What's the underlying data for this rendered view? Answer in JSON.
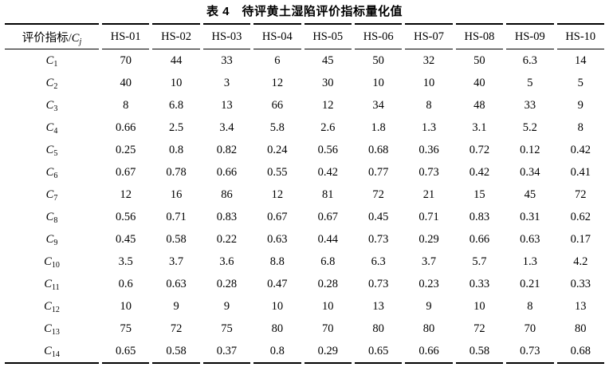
{
  "page": {
    "title": "表 4　待评黄土湿陷评价指标量化值"
  },
  "table": {
    "header": {
      "indicator_prefix": "评价指标/",
      "indicator_symbol": "C",
      "indicator_subscript": "j",
      "columns": [
        "HS-01",
        "HS-02",
        "HS-03",
        "HS-04",
        "HS-05",
        "HS-06",
        "HS-07",
        "HS-08",
        "HS-09",
        "HS-10"
      ]
    },
    "rows": [
      {
        "symbol": "C",
        "sub": "1",
        "values": [
          "70",
          "44",
          "33",
          "6",
          "45",
          "50",
          "32",
          "50",
          "6.3",
          "14"
        ]
      },
      {
        "symbol": "C",
        "sub": "2",
        "values": [
          "40",
          "10",
          "3",
          "12",
          "30",
          "10",
          "10",
          "40",
          "5",
          "5"
        ]
      },
      {
        "symbol": "C",
        "sub": "3",
        "values": [
          "8",
          "6.8",
          "13",
          "66",
          "12",
          "34",
          "8",
          "48",
          "33",
          "9"
        ]
      },
      {
        "symbol": "C",
        "sub": "4",
        "values": [
          "0.66",
          "2.5",
          "3.4",
          "5.8",
          "2.6",
          "1.8",
          "1.3",
          "3.1",
          "5.2",
          "8"
        ]
      },
      {
        "symbol": "C",
        "sub": "5",
        "values": [
          "0.25",
          "0.8",
          "0.82",
          "0.24",
          "0.56",
          "0.68",
          "0.36",
          "0.72",
          "0.12",
          "0.42"
        ]
      },
      {
        "symbol": "C",
        "sub": "6",
        "values": [
          "0.67",
          "0.78",
          "0.66",
          "0.55",
          "0.42",
          "0.77",
          "0.73",
          "0.42",
          "0.34",
          "0.41"
        ]
      },
      {
        "symbol": "C",
        "sub": "7",
        "values": [
          "12",
          "16",
          "86",
          "12",
          "81",
          "72",
          "21",
          "15",
          "45",
          "72"
        ]
      },
      {
        "symbol": "C",
        "sub": "8",
        "values": [
          "0.56",
          "0.71",
          "0.83",
          "0.67",
          "0.67",
          "0.45",
          "0.71",
          "0.83",
          "0.31",
          "0.62"
        ]
      },
      {
        "symbol": "C",
        "sub": "9",
        "values": [
          "0.45",
          "0.58",
          "0.22",
          "0.63",
          "0.44",
          "0.73",
          "0.29",
          "0.66",
          "0.63",
          "0.17"
        ]
      },
      {
        "symbol": "C",
        "sub": "10",
        "values": [
          "3.5",
          "3.7",
          "3.6",
          "8.8",
          "6.8",
          "6.3",
          "3.7",
          "5.7",
          "1.3",
          "4.2"
        ]
      },
      {
        "symbol": "C",
        "sub": "11",
        "values": [
          "0.6",
          "0.63",
          "0.28",
          "0.47",
          "0.28",
          "0.73",
          "0.23",
          "0.33",
          "0.21",
          "0.33"
        ]
      },
      {
        "symbol": "C",
        "sub": "12",
        "values": [
          "10",
          "9",
          "9",
          "10",
          "10",
          "13",
          "9",
          "10",
          "8",
          "13"
        ]
      },
      {
        "symbol": "C",
        "sub": "13",
        "values": [
          "75",
          "72",
          "75",
          "80",
          "70",
          "80",
          "80",
          "72",
          "70",
          "80"
        ]
      },
      {
        "symbol": "C",
        "sub": "14",
        "values": [
          "0.65",
          "0.58",
          "0.37",
          "0.8",
          "0.29",
          "0.65",
          "0.66",
          "0.58",
          "0.73",
          "0.68"
        ]
      }
    ]
  }
}
